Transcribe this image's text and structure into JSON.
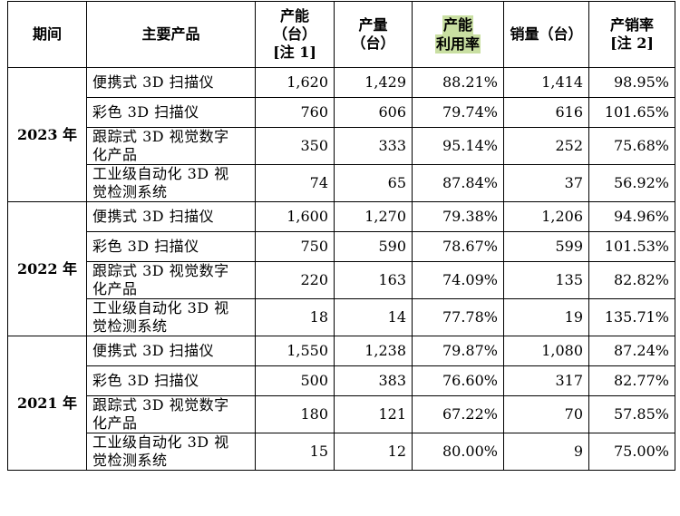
{
  "table": {
    "headers": {
      "period": "期间",
      "product": "主要产品",
      "capacity": [
        "产能",
        "（台）",
        "[注 1]"
      ],
      "output": [
        "产量",
        "（台）"
      ],
      "utilization": [
        "产能",
        "利用率"
      ],
      "sales": "销量（台）",
      "sell_through": [
        "产销率",
        "[注 2]"
      ]
    },
    "groups": [
      {
        "period": "2023 年",
        "rows": [
          {
            "product": [
              "便携式 3D 扫描仪"
            ],
            "capacity": "1,620",
            "output": "1,429",
            "utilization": "88.21%",
            "sales": "1,414",
            "sell_through": "98.95%"
          },
          {
            "product": [
              "彩色 3D 扫描仪"
            ],
            "capacity": "760",
            "output": "606",
            "utilization": "79.74%",
            "sales": "616",
            "sell_through": "101.65%"
          },
          {
            "product": [
              "跟踪式 3D 视觉数字",
              "化产品"
            ],
            "capacity": "350",
            "output": "333",
            "utilization": "95.14%",
            "sales": "252",
            "sell_through": "75.68%"
          },
          {
            "product": [
              "工业级自动化 3D 视",
              "觉检测系统"
            ],
            "capacity": "74",
            "output": "65",
            "utilization": "87.84%",
            "sales": "37",
            "sell_through": "56.92%"
          }
        ]
      },
      {
        "period": "2022 年",
        "rows": [
          {
            "product": [
              "便携式 3D 扫描仪"
            ],
            "capacity": "1,600",
            "output": "1,270",
            "utilization": "79.38%",
            "sales": "1,206",
            "sell_through": "94.96%"
          },
          {
            "product": [
              "彩色 3D 扫描仪"
            ],
            "capacity": "750",
            "output": "590",
            "utilization": "78.67%",
            "sales": "599",
            "sell_through": "101.53%"
          },
          {
            "product": [
              "跟踪式 3D 视觉数字",
              "化产品"
            ],
            "capacity": "220",
            "output": "163",
            "utilization": "74.09%",
            "sales": "135",
            "sell_through": "82.82%"
          },
          {
            "product": [
              "工业级自动化 3D 视",
              "觉检测系统"
            ],
            "capacity": "18",
            "output": "14",
            "utilization": "77.78%",
            "sales": "19",
            "sell_through": "135.71%"
          }
        ]
      },
      {
        "period": "2021 年",
        "rows": [
          {
            "product": [
              "便携式 3D 扫描仪"
            ],
            "capacity": "1,550",
            "output": "1,238",
            "utilization": "79.87%",
            "sales": "1,080",
            "sell_through": "87.24%"
          },
          {
            "product": [
              "彩色 3D 扫描仪"
            ],
            "capacity": "500",
            "output": "383",
            "utilization": "76.60%",
            "sales": "317",
            "sell_through": "82.77%"
          },
          {
            "product": [
              "跟踪式 3D 视觉数字",
              "化产品"
            ],
            "capacity": "180",
            "output": "121",
            "utilization": "67.22%",
            "sales": "70",
            "sell_through": "57.85%"
          },
          {
            "product": [
              "工业级自动化 3D 视",
              "觉检测系统"
            ],
            "capacity": "15",
            "output": "12",
            "utilization": "80.00%",
            "sales": "9",
            "sell_through": "75.00%"
          }
        ]
      }
    ],
    "colors": {
      "highlight": "#c9dfa2",
      "border": "#000000"
    }
  }
}
